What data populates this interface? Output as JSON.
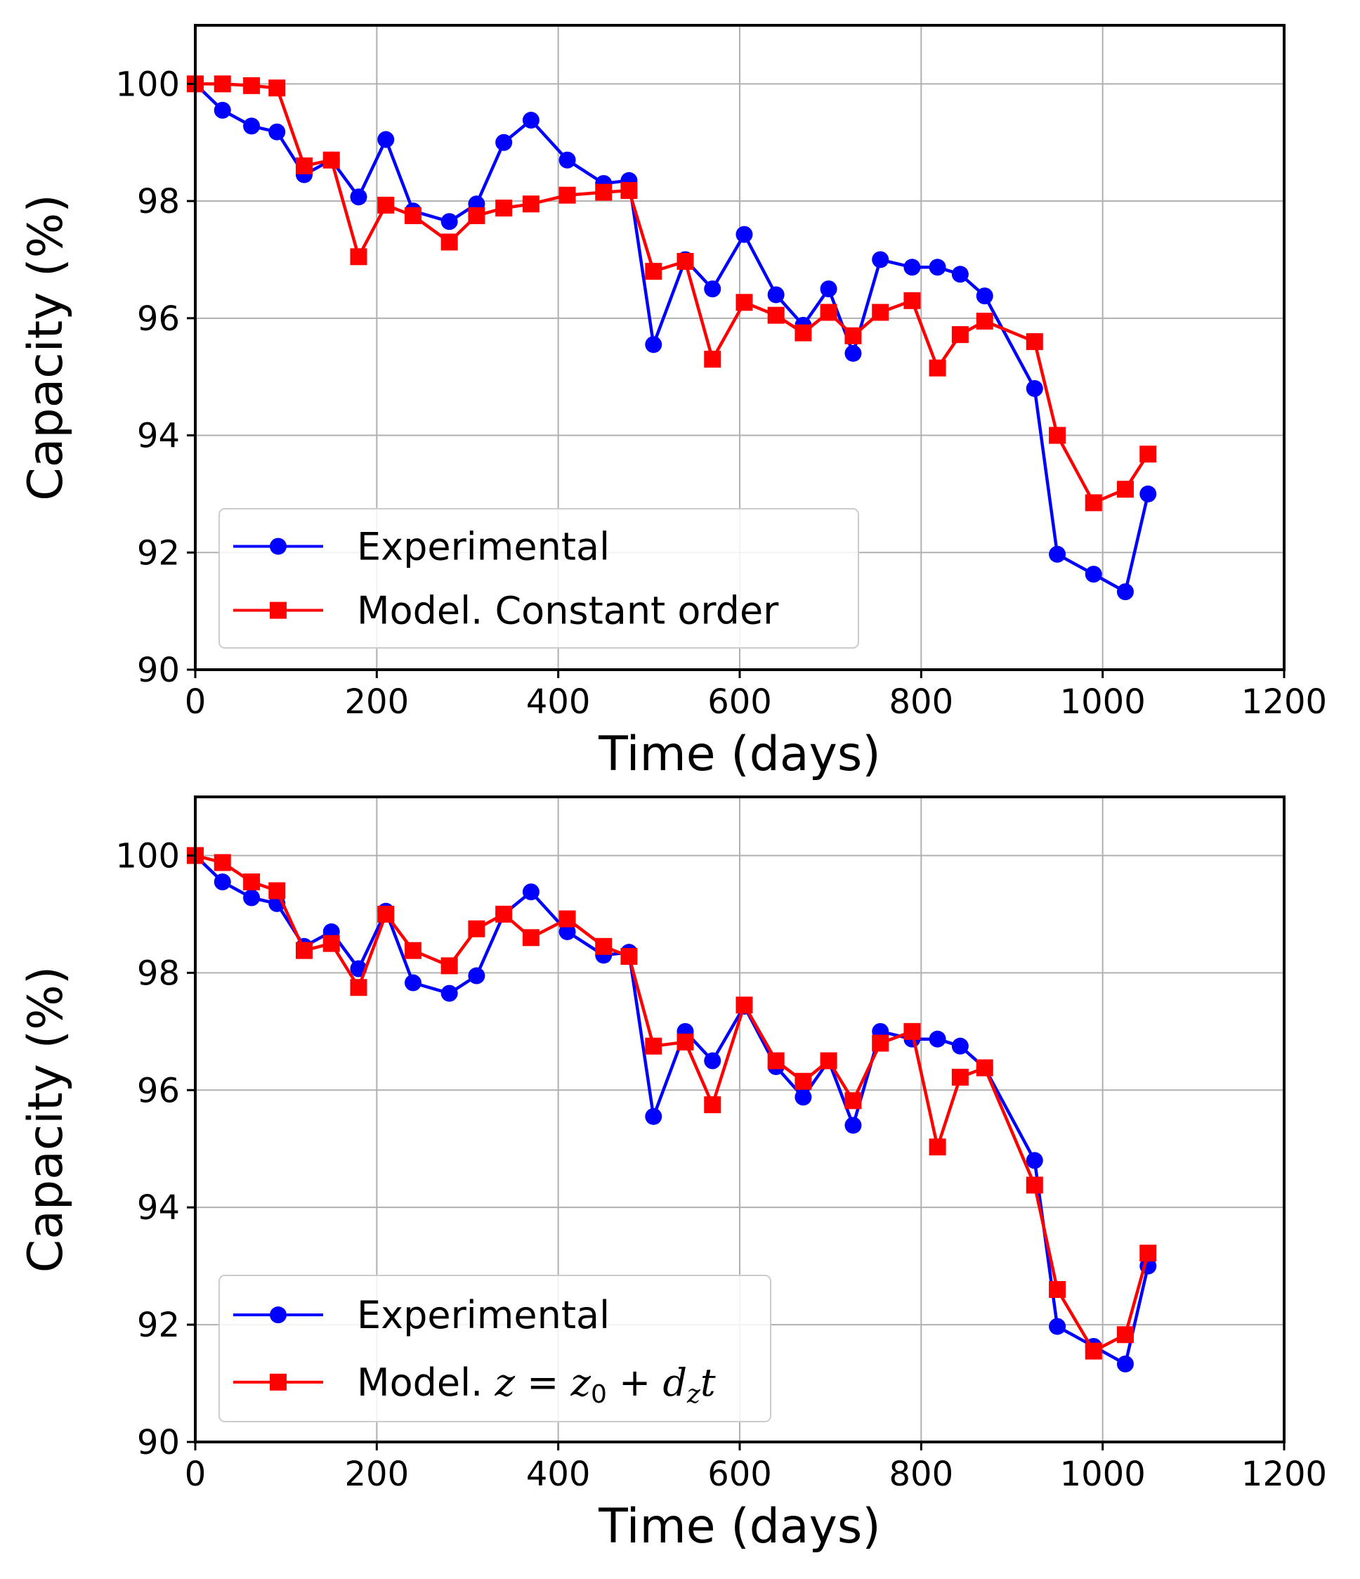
{
  "chart_data": [
    {
      "type": "line",
      "xlabel": "Time (days)",
      "ylabel": "Capacity (%)",
      "xlim": [
        0,
        1200
      ],
      "ylim": [
        90,
        101
      ],
      "xticks": [
        0,
        200,
        400,
        600,
        800,
        1000,
        1200
      ],
      "yticks": [
        90,
        92,
        94,
        96,
        98,
        100
      ],
      "grid": true,
      "legend_position": "lower-left",
      "series": [
        {
          "name": "Experimental",
          "color": "#0000ff",
          "marker": "circle",
          "x": [
            0,
            30,
            62,
            90,
            120,
            150,
            180,
            210,
            240,
            280,
            310,
            340,
            370,
            410,
            450,
            478,
            505,
            540,
            570,
            605,
            640,
            670,
            698,
            725,
            755,
            790,
            818,
            843,
            870,
            925,
            950,
            990,
            1025,
            1050
          ],
          "y": [
            100,
            99.55,
            99.28,
            99.18,
            98.45,
            98.7,
            98.07,
            99.05,
            97.83,
            97.65,
            97.95,
            99.0,
            99.38,
            98.7,
            98.3,
            98.35,
            95.55,
            97.0,
            96.5,
            97.43,
            96.4,
            95.88,
            96.5,
            95.4,
            97.0,
            96.87,
            96.87,
            96.75,
            96.38,
            94.8,
            91.97,
            91.63,
            91.33,
            93.0
          ]
        },
        {
          "name": "Model. Constant order",
          "color": "#ff0000",
          "marker": "square",
          "x": [
            0,
            30,
            62,
            90,
            120,
            150,
            180,
            210,
            240,
            280,
            310,
            340,
            370,
            410,
            450,
            478,
            505,
            540,
            570,
            605,
            640,
            670,
            698,
            725,
            755,
            790,
            818,
            843,
            870,
            925,
            950,
            990,
            1025,
            1050
          ],
          "y": [
            100,
            100,
            99.97,
            99.93,
            98.6,
            98.7,
            97.05,
            97.93,
            97.75,
            97.3,
            97.75,
            97.88,
            97.95,
            98.1,
            98.15,
            98.18,
            96.8,
            96.97,
            95.3,
            96.27,
            96.05,
            95.75,
            96.1,
            95.7,
            96.1,
            96.3,
            95.15,
            95.72,
            95.95,
            95.6,
            94.0,
            92.85,
            93.08,
            93.68
          ]
        }
      ]
    },
    {
      "type": "line",
      "xlabel": "Time (days)",
      "ylabel": "Capacity (%)",
      "xlim": [
        0,
        1200
      ],
      "ylim": [
        90,
        101
      ],
      "xticks": [
        0,
        200,
        400,
        600,
        800,
        1000,
        1200
      ],
      "yticks": [
        90,
        92,
        94,
        96,
        98,
        100
      ],
      "grid": true,
      "legend_position": "lower-left",
      "series": [
        {
          "name": "Experimental",
          "color": "#0000ff",
          "marker": "circle",
          "x": [
            0,
            30,
            62,
            90,
            120,
            150,
            180,
            210,
            240,
            280,
            310,
            340,
            370,
            410,
            450,
            478,
            505,
            540,
            570,
            605,
            640,
            670,
            698,
            725,
            755,
            790,
            818,
            843,
            870,
            925,
            950,
            990,
            1025,
            1050
          ],
          "y": [
            100,
            99.55,
            99.28,
            99.18,
            98.45,
            98.7,
            98.07,
            99.05,
            97.83,
            97.65,
            97.95,
            99.0,
            99.38,
            98.7,
            98.3,
            98.35,
            95.55,
            97.0,
            96.5,
            97.43,
            96.4,
            95.88,
            96.5,
            95.4,
            97.0,
            96.87,
            96.87,
            96.75,
            96.38,
            94.8,
            91.97,
            91.63,
            91.33,
            93.0
          ]
        },
        {
          "name": "Model. z = z0 + dz t",
          "color": "#ff0000",
          "marker": "square",
          "x": [
            0,
            30,
            62,
            90,
            120,
            150,
            180,
            210,
            240,
            280,
            310,
            340,
            370,
            410,
            450,
            478,
            505,
            540,
            570,
            605,
            640,
            670,
            698,
            725,
            755,
            790,
            818,
            843,
            870,
            925,
            950,
            990,
            1025,
            1050
          ],
          "y": [
            100,
            99.88,
            99.55,
            99.4,
            98.38,
            98.5,
            97.75,
            99.0,
            98.38,
            98.12,
            98.75,
            99.0,
            98.6,
            98.92,
            98.45,
            98.28,
            96.75,
            96.82,
            95.75,
            97.45,
            96.5,
            96.15,
            96.5,
            95.82,
            96.8,
            97.0,
            95.03,
            96.22,
            96.38,
            94.38,
            92.6,
            91.55,
            91.83,
            93.22
          ]
        }
      ]
    }
  ]
}
